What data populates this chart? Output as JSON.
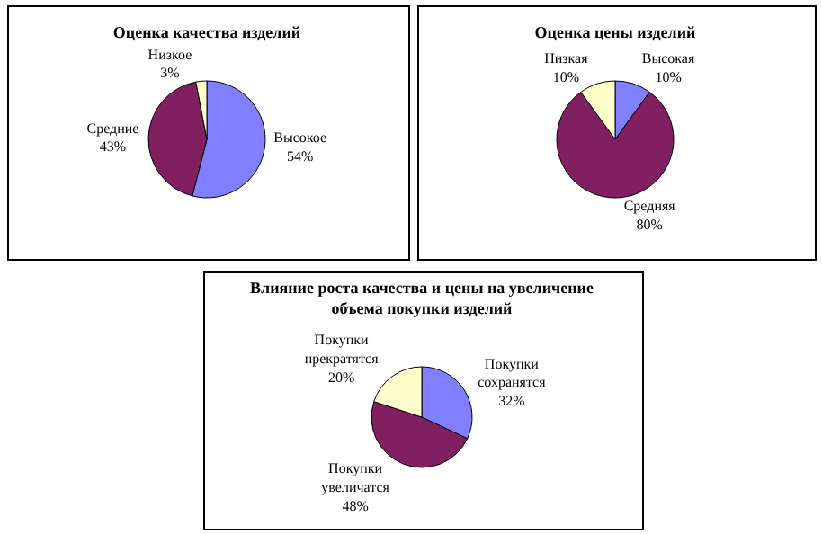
{
  "chart_data": [
    {
      "type": "pie",
      "title": "Оценка качества изделий",
      "categories": [
        "Высокое",
        "Средние",
        "Низкое"
      ],
      "values": [
        54,
        43,
        3
      ],
      "value_labels": [
        "54%",
        "43%",
        "3%"
      ],
      "colors": [
        "#8080ff",
        "#802060",
        "#ffffcc"
      ],
      "legend": false
    },
    {
      "type": "pie",
      "title": "Оценка цены изделий",
      "categories": [
        "Высокая",
        "Средняя",
        "Низкая"
      ],
      "values": [
        10,
        80,
        10
      ],
      "value_labels": [
        "10%",
        "80%",
        "10%"
      ],
      "colors": [
        "#8080ff",
        "#802060",
        "#ffffcc"
      ],
      "legend": false
    },
    {
      "type": "pie",
      "title": "Влияние роста качества и цены на увеличение объема покупки изделий",
      "categories": [
        "Покупки сохранятся",
        "Покупки увеличатся",
        "Покупки прекратятся"
      ],
      "values": [
        32,
        48,
        20
      ],
      "value_labels": [
        "32%",
        "48%",
        "20%"
      ],
      "colors": [
        "#8080ff",
        "#802060",
        "#ffffcc"
      ],
      "legend": false
    }
  ]
}
